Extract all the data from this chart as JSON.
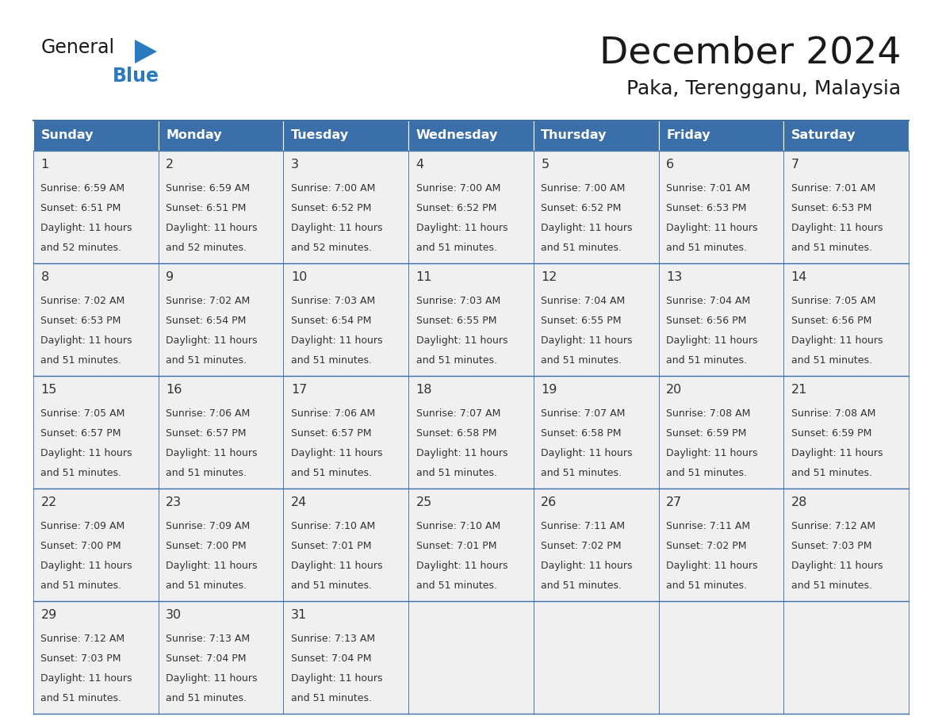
{
  "title": "December 2024",
  "subtitle": "Paka, Terengganu, Malaysia",
  "days_of_week": [
    "Sunday",
    "Monday",
    "Tuesday",
    "Wednesday",
    "Thursday",
    "Friday",
    "Saturday"
  ],
  "header_bg": "#3a6faa",
  "header_text": "#ffffff",
  "cell_bg": "#f0f0f0",
  "cell_text": "#333333",
  "border_color": "#3a6faa",
  "day_num_color": "#333333",
  "logo_general_color": "#1a1a1a",
  "logo_blue_color": "#2a7abf",
  "logo_triangle_color": "#2a7abf",
  "title_color": "#1a1a1a",
  "subtitle_color": "#1a1a1a",
  "weeks": [
    [
      {
        "day": 1,
        "sunrise": "6:59 AM",
        "sunset": "6:51 PM",
        "daylight_suffix": "52 minutes."
      },
      {
        "day": 2,
        "sunrise": "6:59 AM",
        "sunset": "6:51 PM",
        "daylight_suffix": "52 minutes."
      },
      {
        "day": 3,
        "sunrise": "7:00 AM",
        "sunset": "6:52 PM",
        "daylight_suffix": "52 minutes."
      },
      {
        "day": 4,
        "sunrise": "7:00 AM",
        "sunset": "6:52 PM",
        "daylight_suffix": "51 minutes."
      },
      {
        "day": 5,
        "sunrise": "7:00 AM",
        "sunset": "6:52 PM",
        "daylight_suffix": "51 minutes."
      },
      {
        "day": 6,
        "sunrise": "7:01 AM",
        "sunset": "6:53 PM",
        "daylight_suffix": "51 minutes."
      },
      {
        "day": 7,
        "sunrise": "7:01 AM",
        "sunset": "6:53 PM",
        "daylight_suffix": "51 minutes."
      }
    ],
    [
      {
        "day": 8,
        "sunrise": "7:02 AM",
        "sunset": "6:53 PM",
        "daylight_suffix": "51 minutes."
      },
      {
        "day": 9,
        "sunrise": "7:02 AM",
        "sunset": "6:54 PM",
        "daylight_suffix": "51 minutes."
      },
      {
        "day": 10,
        "sunrise": "7:03 AM",
        "sunset": "6:54 PM",
        "daylight_suffix": "51 minutes."
      },
      {
        "day": 11,
        "sunrise": "7:03 AM",
        "sunset": "6:55 PM",
        "daylight_suffix": "51 minutes."
      },
      {
        "day": 12,
        "sunrise": "7:04 AM",
        "sunset": "6:55 PM",
        "daylight_suffix": "51 minutes."
      },
      {
        "day": 13,
        "sunrise": "7:04 AM",
        "sunset": "6:56 PM",
        "daylight_suffix": "51 minutes."
      },
      {
        "day": 14,
        "sunrise": "7:05 AM",
        "sunset": "6:56 PM",
        "daylight_suffix": "51 minutes."
      }
    ],
    [
      {
        "day": 15,
        "sunrise": "7:05 AM",
        "sunset": "6:57 PM",
        "daylight_suffix": "51 minutes."
      },
      {
        "day": 16,
        "sunrise": "7:06 AM",
        "sunset": "6:57 PM",
        "daylight_suffix": "51 minutes."
      },
      {
        "day": 17,
        "sunrise": "7:06 AM",
        "sunset": "6:57 PM",
        "daylight_suffix": "51 minutes."
      },
      {
        "day": 18,
        "sunrise": "7:07 AM",
        "sunset": "6:58 PM",
        "daylight_suffix": "51 minutes."
      },
      {
        "day": 19,
        "sunrise": "7:07 AM",
        "sunset": "6:58 PM",
        "daylight_suffix": "51 minutes."
      },
      {
        "day": 20,
        "sunrise": "7:08 AM",
        "sunset": "6:59 PM",
        "daylight_suffix": "51 minutes."
      },
      {
        "day": 21,
        "sunrise": "7:08 AM",
        "sunset": "6:59 PM",
        "daylight_suffix": "51 minutes."
      }
    ],
    [
      {
        "day": 22,
        "sunrise": "7:09 AM",
        "sunset": "7:00 PM",
        "daylight_suffix": "51 minutes."
      },
      {
        "day": 23,
        "sunrise": "7:09 AM",
        "sunset": "7:00 PM",
        "daylight_suffix": "51 minutes."
      },
      {
        "day": 24,
        "sunrise": "7:10 AM",
        "sunset": "7:01 PM",
        "daylight_suffix": "51 minutes."
      },
      {
        "day": 25,
        "sunrise": "7:10 AM",
        "sunset": "7:01 PM",
        "daylight_suffix": "51 minutes."
      },
      {
        "day": 26,
        "sunrise": "7:11 AM",
        "sunset": "7:02 PM",
        "daylight_suffix": "51 minutes."
      },
      {
        "day": 27,
        "sunrise": "7:11 AM",
        "sunset": "7:02 PM",
        "daylight_suffix": "51 minutes."
      },
      {
        "day": 28,
        "sunrise": "7:12 AM",
        "sunset": "7:03 PM",
        "daylight_suffix": "51 minutes."
      }
    ],
    [
      {
        "day": 29,
        "sunrise": "7:12 AM",
        "sunset": "7:03 PM",
        "daylight_suffix": "51 minutes."
      },
      {
        "day": 30,
        "sunrise": "7:13 AM",
        "sunset": "7:04 PM",
        "daylight_suffix": "51 minutes."
      },
      {
        "day": 31,
        "sunrise": "7:13 AM",
        "sunset": "7:04 PM",
        "daylight_suffix": "51 minutes."
      },
      null,
      null,
      null,
      null
    ]
  ],
  "figsize": [
    11.88,
    9.18
  ],
  "dpi": 100
}
